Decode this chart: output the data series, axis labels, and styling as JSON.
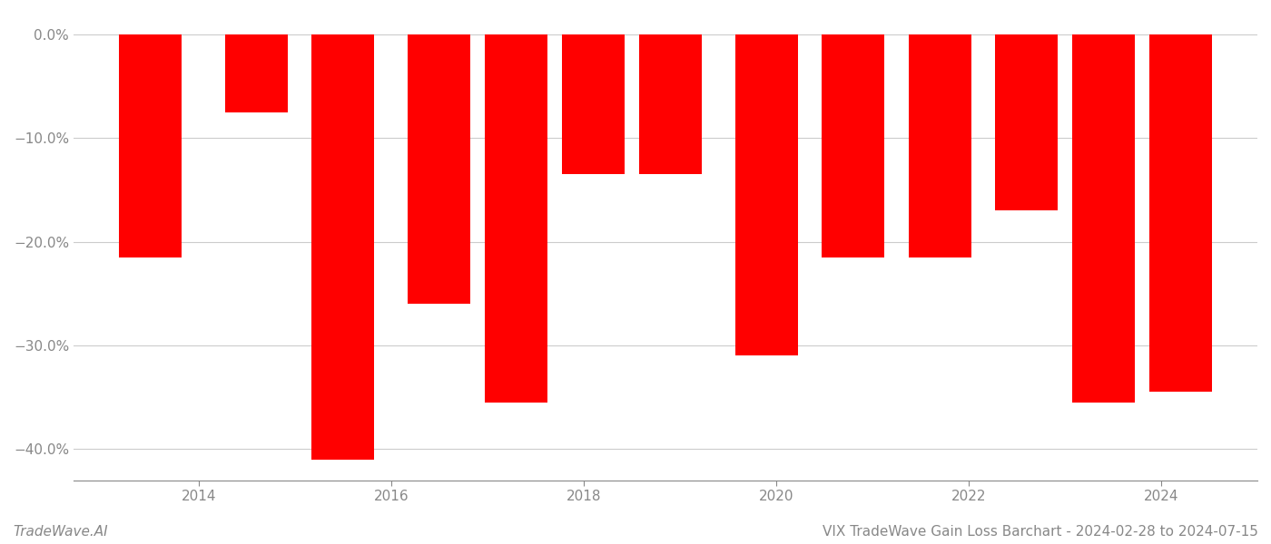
{
  "title": "VIX TradeWave Gain Loss Barchart - 2024-02-28 to 2024-07-15",
  "watermark": "TradeWave.AI",
  "bar_color": "#ff0000",
  "background_color": "#ffffff",
  "grid_color": "#cccccc",
  "bar_centers": [
    2013.5,
    2014.6,
    2015.5,
    2016.5,
    2017.3,
    2018.1,
    2018.9,
    2019.9,
    2020.8,
    2021.7,
    2022.6,
    2023.4,
    2024.2
  ],
  "bar_heights": [
    -21.5,
    -7.5,
    -41.0,
    -26.0,
    -35.5,
    -13.5,
    -13.5,
    -31.0,
    -21.5,
    -21.5,
    -17.0,
    -35.5,
    -34.5
  ],
  "bar_width": 0.65,
  "xlim": [
    2012.7,
    2025.0
  ],
  "ylim": [
    -43,
    2
  ],
  "yticks": [
    0.0,
    -10.0,
    -20.0,
    -30.0,
    -40.0
  ],
  "xticks": [
    2014,
    2016,
    2018,
    2020,
    2022,
    2024
  ],
  "tick_fontsize": 11,
  "title_fontsize": 11,
  "watermark_fontsize": 11
}
